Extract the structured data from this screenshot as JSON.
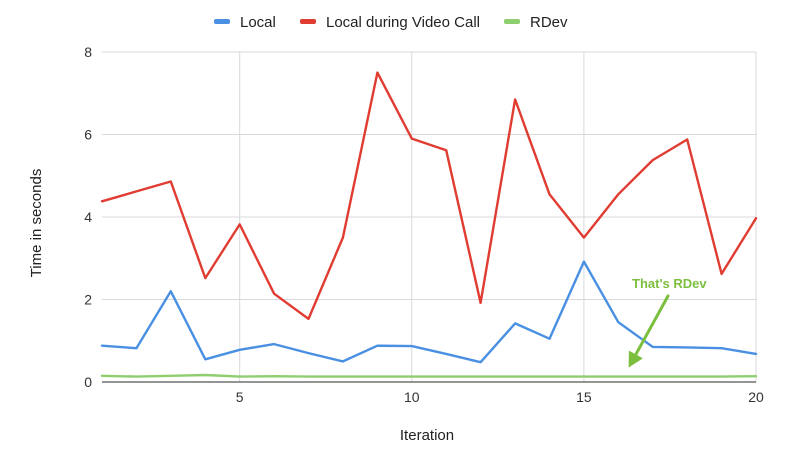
{
  "chart_data": {
    "type": "line",
    "xlabel": "Iteration",
    "ylabel": "Time in seconds",
    "xlim": [
      1,
      20
    ],
    "ylim": [
      0,
      8
    ],
    "x_ticks": [
      5,
      10,
      15,
      20
    ],
    "y_ticks": [
      0,
      2,
      4,
      6,
      8
    ],
    "grid": true,
    "legend_position": "top",
    "x": [
      1,
      2,
      3,
      4,
      5,
      6,
      7,
      8,
      9,
      10,
      11,
      12,
      13,
      14,
      15,
      16,
      17,
      18,
      19,
      20
    ],
    "series": [
      {
        "name": "Local",
        "color": "#4a90e2",
        "values": [
          0.88,
          0.82,
          2.2,
          0.55,
          0.78,
          0.92,
          0.7,
          0.5,
          0.88,
          0.87,
          0.68,
          0.48,
          1.42,
          1.05,
          2.92,
          1.45,
          0.85,
          0.84,
          0.82,
          0.68
        ]
      },
      {
        "name": "Local during Video Call",
        "color": "#e03c31",
        "values": [
          4.38,
          4.62,
          4.86,
          2.52,
          3.82,
          2.14,
          1.53,
          3.5,
          7.5,
          5.9,
          5.62,
          1.92,
          6.85,
          4.55,
          3.5,
          4.55,
          5.38,
          5.88,
          2.62,
          3.97
        ]
      },
      {
        "name": "RDev",
        "color": "#8fce6f",
        "values": [
          0.15,
          0.13,
          0.15,
          0.17,
          0.13,
          0.14,
          0.13,
          0.13,
          0.13,
          0.13,
          0.13,
          0.13,
          0.13,
          0.13,
          0.13,
          0.13,
          0.13,
          0.13,
          0.13,
          0.14
        ]
      }
    ],
    "annotations": [
      {
        "text": "That's RDev",
        "color": "#7cbf3f",
        "points_to_x": 16.3,
        "points_to_y": 0.35
      }
    ]
  }
}
